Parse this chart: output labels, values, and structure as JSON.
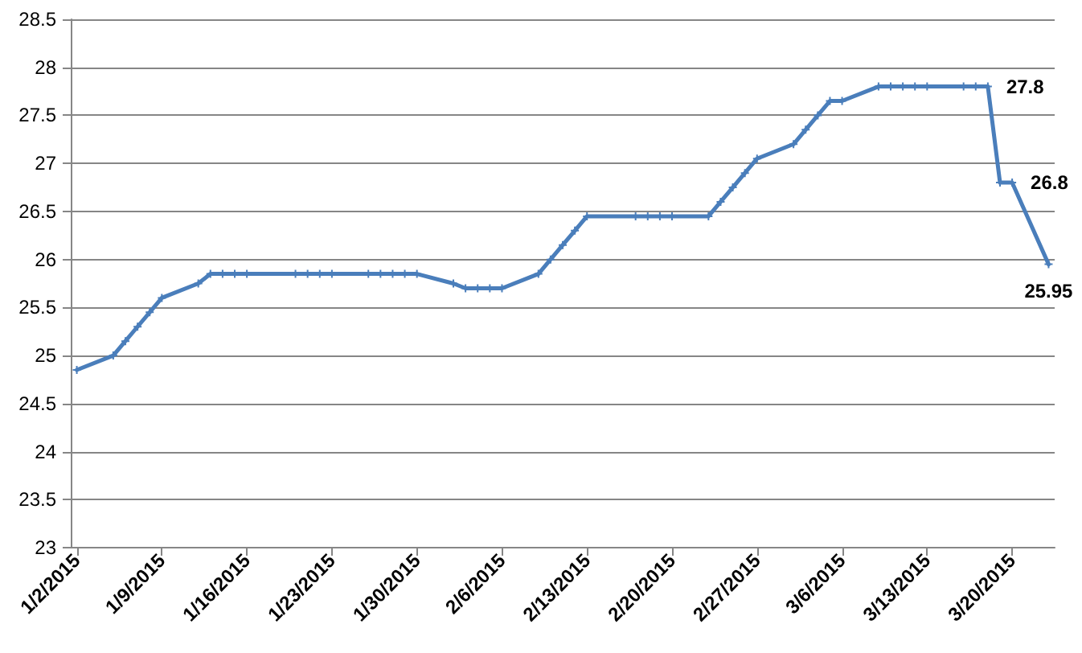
{
  "chart_data": {
    "type": "line",
    "x": [
      "2015-01-02",
      "2015-01-05",
      "2015-01-06",
      "2015-01-07",
      "2015-01-08",
      "2015-01-09",
      "2015-01-12",
      "2015-01-13",
      "2015-01-14",
      "2015-01-15",
      "2015-01-16",
      "2015-01-20",
      "2015-01-21",
      "2015-01-22",
      "2015-01-23",
      "2015-01-26",
      "2015-01-27",
      "2015-01-28",
      "2015-01-29",
      "2015-01-30",
      "2015-02-02",
      "2015-02-03",
      "2015-02-04",
      "2015-02-05",
      "2015-02-06",
      "2015-02-09",
      "2015-02-10",
      "2015-02-11",
      "2015-02-12",
      "2015-02-13",
      "2015-02-17",
      "2015-02-18",
      "2015-02-19",
      "2015-02-20",
      "2015-02-23",
      "2015-02-24",
      "2015-02-25",
      "2015-02-26",
      "2015-02-27",
      "2015-03-02",
      "2015-03-03",
      "2015-03-04",
      "2015-03-05",
      "2015-03-06",
      "2015-03-09",
      "2015-03-10",
      "2015-03-11",
      "2015-03-12",
      "2015-03-13",
      "2015-03-16",
      "2015-03-17",
      "2015-03-18",
      "2015-03-19",
      "2015-03-20",
      "2015-03-23"
    ],
    "values": [
      24.85,
      25.0,
      25.15,
      25.3,
      25.45,
      25.6,
      25.75,
      25.85,
      25.85,
      25.85,
      25.85,
      25.85,
      25.85,
      25.85,
      25.85,
      25.85,
      25.85,
      25.85,
      25.85,
      25.85,
      25.75,
      25.7,
      25.7,
      25.7,
      25.7,
      25.85,
      26.0,
      26.15,
      26.3,
      26.45,
      26.45,
      26.45,
      26.45,
      26.45,
      26.45,
      26.6,
      26.75,
      26.9,
      27.05,
      27.2,
      27.35,
      27.5,
      27.65,
      27.65,
      27.8,
      27.8,
      27.8,
      27.8,
      27.8,
      27.8,
      27.8,
      27.8,
      26.8,
      26.8,
      25.95
    ],
    "value_labels": [
      null,
      null,
      null,
      null,
      null,
      null,
      null,
      null,
      null,
      null,
      null,
      null,
      null,
      null,
      null,
      null,
      null,
      null,
      null,
      null,
      null,
      null,
      null,
      null,
      null,
      null,
      null,
      null,
      null,
      null,
      null,
      null,
      null,
      null,
      null,
      null,
      null,
      null,
      null,
      null,
      null,
      null,
      null,
      null,
      null,
      null,
      null,
      null,
      null,
      null,
      null,
      "27.8",
      null,
      "26.8",
      "25.95"
    ],
    "color": "#4a7ebb",
    "marker": "cross",
    "line_style": "solid",
    "grid": "y",
    "xlim": [
      "2015-01-01T12:00",
      "2015-03-23T12:00"
    ],
    "xticks": [
      {
        "value": "2015-01-02",
        "label": "1/2/2015"
      },
      {
        "value": "2015-01-09",
        "label": "1/9/2015"
      },
      {
        "value": "2015-01-16",
        "label": "1/16/2015"
      },
      {
        "value": "2015-01-23",
        "label": "1/23/2015"
      },
      {
        "value": "2015-01-30",
        "label": "1/30/2015"
      },
      {
        "value": "2015-02-06",
        "label": "2/6/2015"
      },
      {
        "value": "2015-02-13",
        "label": "2/13/2015"
      },
      {
        "value": "2015-02-20",
        "label": "2/20/2015"
      },
      {
        "value": "2015-02-27",
        "label": "2/27/2015"
      },
      {
        "value": "2015-03-06",
        "label": "3/6/2015"
      },
      {
        "value": "2015-03-13",
        "label": "3/13/2015"
      },
      {
        "value": "2015-03-20",
        "label": "3/20/2015"
      }
    ],
    "ylim": [
      23,
      28.5
    ],
    "yticks": [
      23,
      23.5,
      24,
      24.5,
      25,
      25.5,
      26,
      26.5,
      27,
      27.5,
      28,
      28.5
    ]
  }
}
